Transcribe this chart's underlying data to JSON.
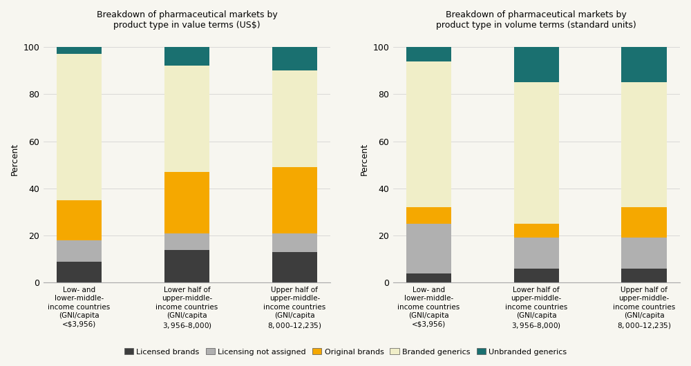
{
  "title_left": "Breakdown of pharmaceutical markets by\nproduct type in value terms (US$)",
  "title_right": "Breakdown of pharmaceutical markets by\nproduct type in volume terms (standard units)",
  "categories": [
    "Low- and\nlower-middle-\nincome countries\n(GNI/capita\n<$3,956)",
    "Lower half of\nupper-middle-\nincome countries\n(GNI/capita\n$3,956–$8,000)",
    "Upper half of\nupper-middle-\nincome countries\n(GNI/capita\n$8,000–$12,235)"
  ],
  "value_data": {
    "licensed_brands": [
      9,
      14,
      13
    ],
    "licensing_not_assigned": [
      9,
      7,
      8
    ],
    "original_brands": [
      17,
      26,
      28
    ],
    "branded_generics": [
      62,
      45,
      41
    ],
    "unbranded_generics": [
      3,
      8,
      10
    ]
  },
  "volume_data": {
    "licensed_brands": [
      4,
      6,
      6
    ],
    "licensing_not_assigned": [
      21,
      13,
      13
    ],
    "original_brands": [
      7,
      6,
      13
    ],
    "branded_generics": [
      62,
      60,
      53
    ],
    "unbranded_generics": [
      6,
      15,
      15
    ]
  },
  "colors": {
    "licensed_brands": "#3d3d3d",
    "licensing_not_assigned": "#b0b0b0",
    "original_brands": "#f5a800",
    "branded_generics": "#f0eec8",
    "unbranded_generics": "#1a7070"
  },
  "legend_labels": {
    "licensed_brands": "Licensed brands",
    "licensing_not_assigned": "Licensing not assigned",
    "original_brands": "Original brands",
    "branded_generics": "Branded generics",
    "unbranded_generics": "Unbranded generics"
  },
  "ylabel": "Percent",
  "ylim": [
    0,
    105
  ],
  "yticks": [
    0,
    20,
    40,
    60,
    80,
    100
  ],
  "background_color": "#f7f6f0",
  "bar_width": 0.42
}
